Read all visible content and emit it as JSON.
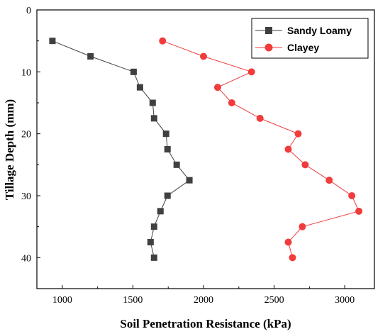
{
  "chart_data": {
    "type": "scatter",
    "xlabel": "Soil Penetration Resistance (kPa)",
    "ylabel": "Tillage Depth (mm)",
    "xlim": [
      820,
      3210
    ],
    "ylim": [
      0,
      45
    ],
    "y_inverted": true,
    "x_ticks": [
      1000,
      1500,
      2000,
      2500,
      3000
    ],
    "y_ticks": [
      0,
      10,
      20,
      30,
      40
    ],
    "x_tick_labels": [
      "1000",
      "1500",
      "2000",
      "2500",
      "3000"
    ],
    "y_tick_labels": [
      "0",
      "10",
      "20",
      "30",
      "40"
    ],
    "grid": false,
    "legend": "top-right",
    "series": [
      {
        "name": "Sandy Loamy",
        "marker": "square",
        "color": "#404040",
        "points": [
          {
            "x": 930,
            "y": 5
          },
          {
            "x": 1200,
            "y": 7.5
          },
          {
            "x": 1505,
            "y": 10
          },
          {
            "x": 1550,
            "y": 12.5
          },
          {
            "x": 1640,
            "y": 15
          },
          {
            "x": 1650,
            "y": 17.5
          },
          {
            "x": 1735,
            "y": 20
          },
          {
            "x": 1745,
            "y": 22.5
          },
          {
            "x": 1810,
            "y": 25
          },
          {
            "x": 1900,
            "y": 27.5
          },
          {
            "x": 1745,
            "y": 30
          },
          {
            "x": 1695,
            "y": 32.5
          },
          {
            "x": 1650,
            "y": 35
          },
          {
            "x": 1625,
            "y": 37.5
          },
          {
            "x": 1650,
            "y": 40
          }
        ]
      },
      {
        "name": "Clayey",
        "marker": "circle",
        "color": "#f03c3c",
        "points": [
          {
            "x": 1710,
            "y": 5
          },
          {
            "x": 2000,
            "y": 7.5
          },
          {
            "x": 2340,
            "y": 10
          },
          {
            "x": 2100,
            "y": 12.5
          },
          {
            "x": 2200,
            "y": 15
          },
          {
            "x": 2400,
            "y": 17.5
          },
          {
            "x": 2670,
            "y": 20
          },
          {
            "x": 2600,
            "y": 22.5
          },
          {
            "x": 2720,
            "y": 25
          },
          {
            "x": 2890,
            "y": 27.5
          },
          {
            "x": 3050,
            "y": 30
          },
          {
            "x": 3100,
            "y": 32.5
          },
          {
            "x": 2700,
            "y": 35
          },
          {
            "x": 2600,
            "y": 37.5
          },
          {
            "x": 2630,
            "y": 40
          }
        ]
      }
    ]
  }
}
